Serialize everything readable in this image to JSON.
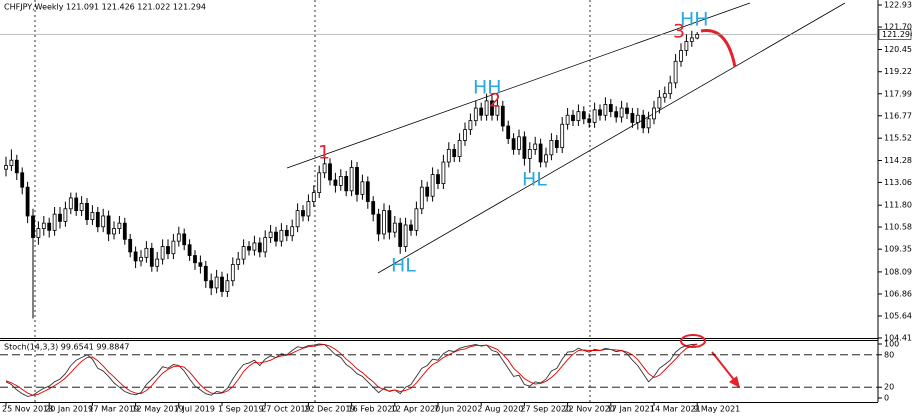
{
  "chart_data": [
    {
      "type": "candlestick",
      "title": "CHFJPY,Weekly 121.091 121.426 121.022 121.294",
      "open": [
        113.8,
        114.0,
        114.3,
        113.6,
        112.8,
        111.2,
        110.0,
        110.5,
        110.8,
        110.4,
        111.3,
        110.9,
        111.6,
        112.2,
        111.5,
        111.9,
        111.0,
        111.4,
        110.6,
        111.2,
        110.2,
        110.5,
        110.8,
        109.9,
        109.2,
        108.7,
        108.9,
        109.4,
        108.4,
        108.8,
        109.5,
        109.1,
        109.8,
        110.2,
        109.6,
        109.0,
        108.6,
        108.4,
        107.6,
        107.2,
        107.8,
        107.0,
        107.6,
        108.5,
        108.8,
        109.5,
        109.3,
        109.7,
        109.2,
        110.0,
        110.3,
        109.8,
        110.4,
        110.1,
        110.6,
        111.5,
        111.2,
        112.0,
        112.5,
        113.6,
        114.1,
        113.2,
        112.9,
        113.4,
        112.6,
        113.9,
        112.4,
        113.1,
        112.0,
        111.3,
        110.2,
        111.5,
        110.3,
        110.8,
        109.5,
        110.7,
        110.4,
        111.6,
        112.8,
        112.3,
        113.5,
        113.0,
        114.2,
        114.9,
        114.5,
        115.4,
        116.0,
        116.5,
        117.2,
        116.8,
        117.6,
        116.8,
        117.3,
        116.2,
        115.5,
        114.9,
        115.6,
        114.4,
        114.9,
        115.2,
        114.2,
        114.6,
        115.4,
        115.0,
        116.3,
        116.8,
        116.5,
        117.0,
        116.6,
        116.4,
        117.1,
        116.8,
        117.4,
        117.0,
        116.7,
        117.2,
        116.9,
        116.4,
        116.8,
        116.1,
        116.6,
        117.2,
        117.8,
        118.0,
        118.6,
        119.8,
        120.4,
        120.9,
        121.091
      ],
      "high": [
        114.5,
        114.9,
        114.6,
        113.9,
        113.1,
        111.6,
        110.9,
        111.2,
        111.1,
        111.7,
        111.7,
        112.0,
        112.5,
        112.5,
        112.3,
        112.2,
        111.8,
        111.7,
        111.6,
        111.5,
        110.9,
        111.2,
        111.1,
        110.2,
        109.5,
        109.3,
        109.8,
        109.7,
        109.2,
        109.9,
        109.9,
        110.2,
        110.6,
        110.5,
        109.9,
        109.3,
        109.0,
        108.7,
        108.0,
        108.2,
        108.1,
        108.0,
        108.9,
        109.2,
        109.9,
        109.8,
        110.1,
        110.0,
        110.4,
        110.7,
        110.6,
        110.8,
        110.7,
        111.0,
        111.9,
        111.8,
        112.4,
        112.9,
        114.0,
        114.6,
        114.4,
        113.6,
        113.8,
        113.7,
        114.3,
        114.2,
        113.5,
        113.4,
        112.3,
        111.6,
        111.9,
        111.8,
        111.2,
        111.1,
        111.1,
        111.0,
        112.0,
        113.2,
        113.1,
        113.9,
        113.8,
        114.6,
        115.3,
        115.2,
        115.8,
        116.4,
        116.9,
        117.6,
        117.5,
        118.0,
        117.9,
        117.7,
        117.6,
        116.5,
        115.8,
        116.0,
        115.9,
        115.3,
        115.6,
        115.5,
        115.0,
        115.8,
        115.7,
        116.7,
        117.2,
        117.1,
        117.4,
        117.3,
        116.9,
        117.5,
        117.4,
        117.8,
        117.7,
        117.3,
        117.6,
        117.5,
        117.2,
        117.2,
        117.1,
        117.0,
        117.6,
        118.2,
        118.4,
        119.0,
        120.2,
        120.8,
        121.3,
        121.5,
        121.426
      ],
      "low": [
        113.4,
        113.7,
        113.2,
        112.4,
        110.8,
        105.5,
        109.6,
        110.1,
        110.0,
        110.1,
        110.5,
        110.6,
        111.3,
        111.2,
        111.2,
        110.7,
        110.7,
        110.3,
        110.3,
        109.8,
        109.9,
        110.2,
        109.6,
        108.9,
        108.3,
        108.4,
        108.6,
        108.1,
        108.1,
        108.5,
        108.8,
        108.8,
        109.5,
        109.3,
        108.7,
        108.2,
        108.0,
        107.2,
        106.8,
        106.9,
        106.7,
        106.7,
        107.3,
        108.2,
        108.5,
        109.0,
        109.0,
        108.9,
        108.9,
        109.7,
        109.5,
        109.5,
        109.8,
        109.8,
        110.3,
        110.9,
        110.9,
        111.7,
        112.2,
        113.3,
        112.9,
        112.5,
        112.6,
        112.3,
        112.3,
        112.0,
        112.1,
        111.6,
        110.9,
        109.8,
        109.9,
        109.9,
        110.0,
        109.1,
        109.2,
        110.1,
        110.1,
        111.3,
        112.0,
        112.0,
        112.7,
        112.7,
        113.9,
        114.2,
        114.2,
        115.1,
        115.7,
        116.2,
        116.5,
        116.5,
        116.5,
        116.5,
        115.9,
        115.2,
        114.6,
        114.6,
        114.0,
        113.6,
        114.6,
        113.9,
        113.9,
        114.3,
        114.7,
        114.7,
        116.0,
        116.2,
        116.2,
        116.3,
        116.1,
        116.1,
        116.5,
        116.5,
        116.7,
        116.4,
        116.4,
        116.6,
        116.1,
        116.0,
        115.8,
        115.8,
        116.3,
        116.9,
        117.5,
        117.7,
        118.3,
        119.5,
        120.1,
        120.6,
        121.022
      ],
      "close": [
        114.0,
        114.3,
        113.6,
        112.8,
        111.2,
        110.0,
        110.5,
        110.8,
        110.4,
        111.3,
        110.9,
        111.6,
        112.2,
        111.5,
        111.9,
        111.0,
        111.4,
        110.6,
        111.2,
        110.2,
        110.5,
        110.8,
        109.9,
        109.2,
        108.7,
        108.9,
        109.4,
        108.4,
        108.8,
        109.5,
        109.1,
        109.8,
        110.2,
        109.6,
        109.0,
        108.6,
        108.4,
        107.6,
        107.2,
        107.8,
        107.0,
        107.6,
        108.5,
        108.8,
        109.5,
        109.3,
        109.7,
        109.2,
        110.0,
        110.3,
        109.8,
        110.4,
        110.1,
        110.6,
        111.5,
        111.2,
        112.0,
        112.5,
        113.6,
        114.1,
        113.2,
        112.9,
        113.4,
        112.6,
        113.9,
        112.4,
        113.1,
        112.0,
        111.3,
        110.2,
        111.5,
        110.3,
        110.8,
        109.5,
        110.7,
        110.4,
        111.6,
        112.8,
        112.3,
        113.5,
        113.0,
        114.2,
        114.9,
        114.5,
        115.4,
        116.0,
        116.5,
        117.2,
        116.8,
        117.6,
        116.8,
        117.3,
        116.2,
        115.5,
        114.9,
        115.6,
        114.4,
        114.9,
        115.2,
        114.2,
        114.6,
        115.4,
        115.0,
        116.3,
        116.8,
        116.5,
        117.0,
        116.6,
        116.4,
        117.1,
        116.8,
        117.4,
        117.0,
        116.7,
        117.2,
        116.9,
        116.4,
        116.8,
        116.1,
        116.6,
        117.2,
        117.8,
        118.0,
        118.6,
        119.8,
        120.4,
        120.9,
        121.1,
        121.294
      ],
      "up_color": "#ffffff",
      "down_color": "#000000",
      "ylim": [
        104.415,
        122.93
      ],
      "yticks": [
        {
          "value": 122.93,
          "label": "122.930"
        },
        121.705,
        120.455,
        {
          "value": 119.22,
          "label": "119.220"
        },
        117.995,
        {
          "value": 116.77,
          "label": "116.770"
        },
        115.525,
        114.285,
        113.065,
        {
          "value": 111.8,
          "label": "111.800"
        },
        110.585,
        109.355,
        {
          "value": 108.09,
          "label": "108.090"
        },
        106.865,
        {
          "value": 105.64,
          "label": "105.640"
        },
        104.415
      ],
      "xticks": [
        {
          "value": 0,
          "label": "25 Nov 2018"
        },
        {
          "value": 8,
          "label": "20 Jan 2019"
        },
        {
          "value": 16,
          "label": "17 Mar 2019"
        },
        {
          "value": 24,
          "label": "12 May 2019"
        },
        {
          "value": 32,
          "label": "7 Jul 2019"
        },
        {
          "value": 40,
          "label": "1 Sep 2019"
        },
        {
          "value": 48,
          "label": "27 Oct 2019"
        },
        {
          "value": 56,
          "label": "22 Dec 2019"
        },
        {
          "value": 64,
          "label": "16 Feb 2020"
        },
        {
          "value": 72,
          "label": "12 Apr 2020"
        },
        {
          "value": 80,
          "label": "7 Jun 2020"
        },
        {
          "value": 88,
          "label": "2 Aug 2020"
        },
        {
          "value": 96,
          "label": "27 Sep 2020"
        },
        {
          "value": 104,
          "label": "22 Nov 2020"
        },
        {
          "value": 112,
          "label": "17 Jan 2021"
        },
        {
          "value": 120,
          "label": "14 Mar 2021"
        },
        {
          "value": 128,
          "label": "9 May 2021"
        }
      ],
      "current_price": 121.294,
      "annotations": [
        {
          "text": "HH",
          "color": "#2aa8e0"
        },
        {
          "text": "2",
          "color": "#e8202a"
        },
        {
          "text": "1",
          "color": "#e8202a"
        },
        {
          "text": "HL",
          "color": "#2aa8e0"
        },
        {
          "text": "HL",
          "color": "#2aa8e0"
        },
        {
          "text": "HH",
          "color": "#2aa8e0"
        },
        {
          "text": "3",
          "color": "#e8202a"
        }
      ]
    },
    {
      "type": "line",
      "title": "Stoch(14,3,3) 99.6541 99.8847",
      "series": [
        {
          "color": "#333333",
          "values": [
            30,
            25,
            15,
            8,
            3,
            5,
            12,
            18,
            22,
            30,
            35,
            45,
            60,
            70,
            75,
            80,
            72,
            55,
            50,
            40,
            28,
            20,
            12,
            8,
            6,
            10,
            25,
            35,
            45,
            58,
            55,
            62,
            60,
            50,
            35,
            22,
            15,
            8,
            5,
            12,
            10,
            18,
            35,
            50,
            62,
            65,
            70,
            60,
            72,
            78,
            75,
            82,
            80,
            88,
            95,
            93,
            97,
            98,
            100,
            99,
            90,
            80,
            75,
            62,
            55,
            45,
            40,
            30,
            20,
            10,
            18,
            12,
            15,
            8,
            20,
            25,
            40,
            55,
            60,
            72,
            70,
            82,
            88,
            86,
            92,
            95,
            97,
            99,
            96,
            98,
            88,
            85,
            70,
            55,
            40,
            42,
            25,
            22,
            30,
            28,
            35,
            50,
            55,
            72,
            85,
            86,
            92,
            88,
            85,
            90,
            88,
            92,
            90,
            86,
            88,
            82,
            70,
            60,
            45,
            30,
            40,
            55,
            62,
            70,
            85,
            93,
            97,
            99,
            99.6541
          ]
        },
        {
          "color": "#e00000",
          "values": [
            32,
            28,
            23,
            16,
            9,
            5,
            7,
            12,
            17,
            23,
            29,
            37,
            47,
            58,
            68,
            75,
            76,
            69,
            59,
            48,
            39,
            29,
            20,
            13,
            9,
            8,
            14,
            23,
            35,
            46,
            53,
            58,
            59,
            57,
            48,
            36,
            24,
            15,
            9,
            8,
            9,
            13,
            21,
            34,
            49,
            59,
            66,
            65,
            67,
            70,
            75,
            78,
            79,
            83,
            88,
            92,
            95,
            96,
            98,
            99,
            96,
            90,
            82,
            72,
            64,
            54,
            47,
            38,
            30,
            20,
            16,
            13,
            15,
            12,
            14,
            18,
            28,
            40,
            52,
            62,
            67,
            75,
            80,
            85,
            89,
            91,
            95,
            97,
            97,
            98,
            94,
            90,
            81,
            70,
            55,
            46,
            36,
            30,
            26,
            27,
            31,
            38,
            47,
            59,
            71,
            81,
            88,
            89,
            88,
            88,
            88,
            90,
            90,
            89,
            88,
            85,
            80,
            71,
            58,
            45,
            38,
            42,
            52,
            62,
            72,
            83,
            92,
            96,
            99.8847
          ]
        }
      ],
      "ylim": [
        0,
        100
      ],
      "yticks": [
        0,
        20,
        80,
        100
      ],
      "levels": [
        20,
        80
      ]
    }
  ]
}
